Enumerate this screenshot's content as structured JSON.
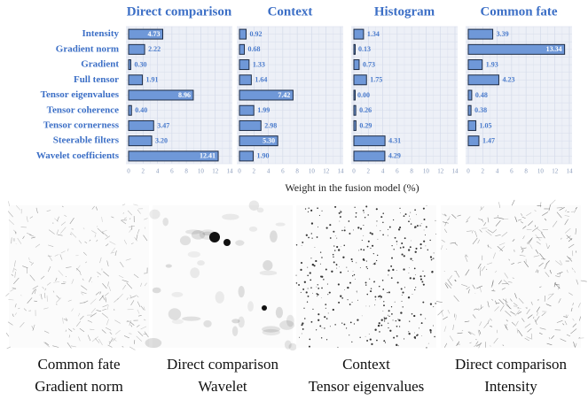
{
  "chart_data": {
    "type": "bar",
    "categories": [
      "Intensity",
      "Gradient norm",
      "Gradient",
      "Full tensor",
      "Tensor eigenvalues",
      "Tensor coherence",
      "Tensor cornerness",
      "Steerable filters",
      "Wavelet coefficients"
    ],
    "series": [
      {
        "name": "Direct comparison",
        "color": "#6f98d8",
        "values": [
          4.73,
          2.22,
          0.3,
          1.91,
          8.96,
          0.4,
          3.47,
          3.2,
          12.41
        ],
        "value_labels": [
          "4.73",
          "2.22",
          "0.30",
          "1.91",
          "8.96",
          "0.40",
          "3.47",
          "3.20",
          "12.41"
        ]
      },
      {
        "name": "Context",
        "color": "#6f98d8",
        "values": [
          0.92,
          0.68,
          1.33,
          1.64,
          7.42,
          1.99,
          2.98,
          5.3,
          1.9
        ],
        "value_labels": [
          "0.92",
          "0.68",
          "1.33",
          "1.64",
          "7.42",
          "1.99",
          "2.98",
          "5.30",
          "1.90"
        ]
      },
      {
        "name": "Histogram",
        "color": "#6f98d8",
        "values": [
          1.34,
          0.13,
          0.73,
          1.75,
          0.0,
          0.26,
          0.29,
          4.31,
          4.29
        ],
        "value_labels": [
          "1.34",
          "0.13",
          "0.73",
          "1.75",
          "0.00",
          "0.26",
          "0.29",
          "4.31",
          "4.29"
        ]
      },
      {
        "name": "Common fate",
        "color": "#6f98d8",
        "values": [
          3.39,
          13.34,
          1.93,
          4.23,
          0.48,
          0.38,
          1.05,
          1.47,
          null
        ],
        "value_labels": [
          "3.39",
          "13.34",
          "1.93",
          "4.23",
          "0.48",
          "0.38",
          "1.05",
          "1.47",
          null
        ]
      }
    ],
    "xlim": [
      0,
      14
    ],
    "xticks": [
      0,
      2,
      4,
      6,
      8,
      10,
      12,
      14
    ],
    "xlabel": "Weight in the fusion model (%)",
    "grid": true
  },
  "images": [
    {
      "caption": [
        "Common fate",
        "Gradient norm"
      ]
    },
    {
      "caption": [
        "Direct comparison",
        "Wavelet"
      ]
    },
    {
      "caption": [
        "Context",
        "Tensor eigenvalues"
      ]
    },
    {
      "caption": [
        "Direct comparison",
        "Intensity"
      ]
    }
  ]
}
